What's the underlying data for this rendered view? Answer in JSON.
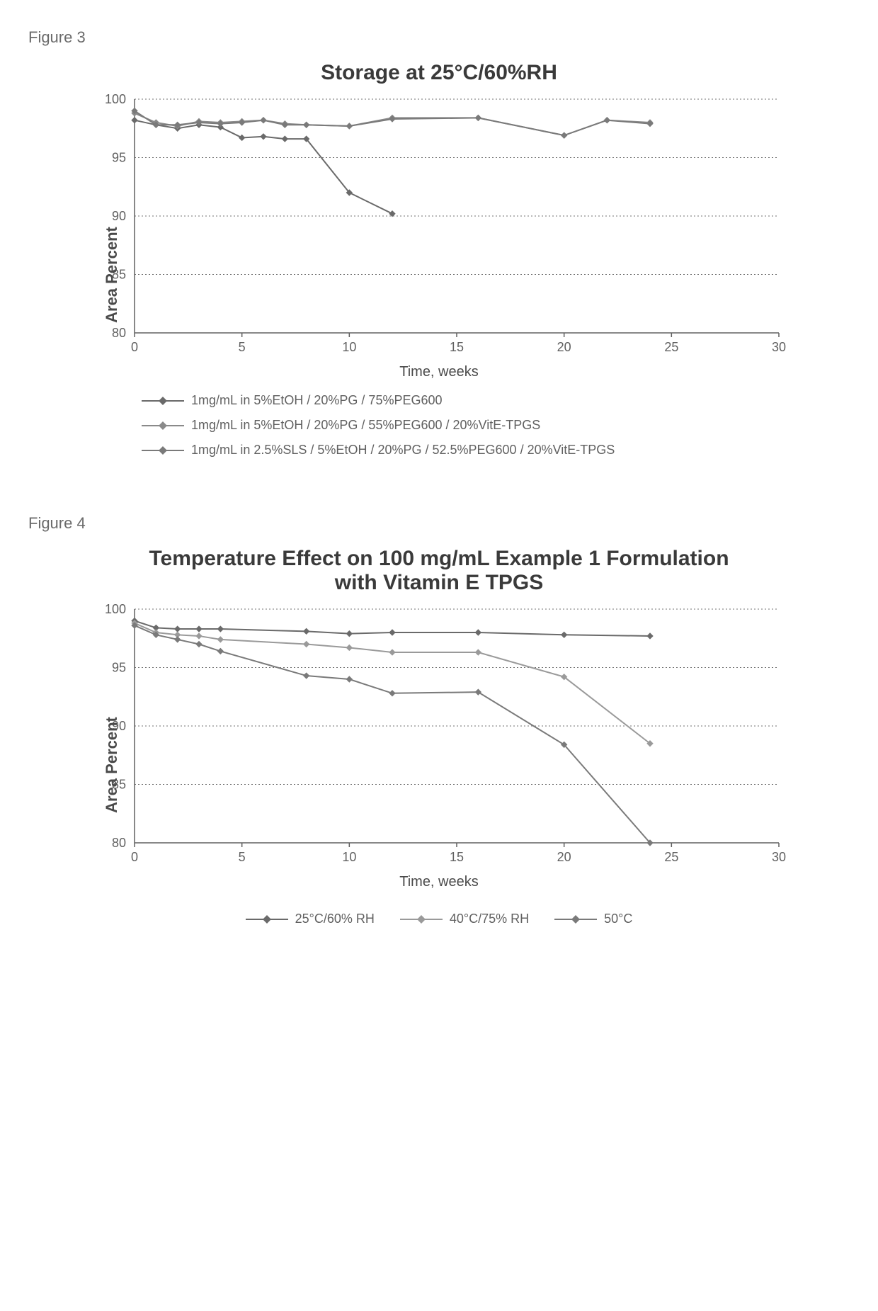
{
  "figure3": {
    "label": "Figure 3",
    "title": "Storage at 25°C/60%RH",
    "ylabel": "Area Percent",
    "xlabel": "Time, weeks",
    "xlim": [
      0,
      30
    ],
    "xtick_step": 5,
    "ylim": [
      80,
      100
    ],
    "ytick_step": 5,
    "grid_color": "#707070",
    "background_color": "#ffffff",
    "title_fontsize": 30,
    "label_fontsize": 20,
    "tick_fontsize": 18,
    "marker": "diamond",
    "marker_size": 8,
    "line_width": 2,
    "series": [
      {
        "label": "1mg/mL in 5%EtOH / 20%PG / 75%PEG600",
        "color": "#6a6a6a",
        "x": [
          0,
          1,
          2,
          3,
          4,
          5,
          6,
          7,
          8,
          10,
          12
        ],
        "y": [
          98.2,
          97.8,
          97.5,
          97.8,
          97.6,
          96.7,
          96.8,
          96.6,
          96.6,
          92.0,
          90.2
        ]
      },
      {
        "label": "1mg/mL in 5%EtOH / 20%PG / 55%PEG600 / 20%VitE-TPGS",
        "color": "#8a8a8a",
        "x": [
          0,
          1,
          2,
          3,
          4,
          5,
          6,
          7,
          8,
          10,
          12,
          16,
          20,
          22,
          24
        ],
        "y": [
          98.8,
          98.0,
          97.7,
          98.1,
          98.0,
          98.1,
          98.2,
          97.9,
          97.8,
          97.7,
          98.4,
          98.4,
          96.9,
          98.2,
          98.0
        ]
      },
      {
        "label": "1mg/mL in 2.5%SLS / 5%EtOH / 20%PG / 52.5%PEG600 / 20%VitE-TPGS",
        "color": "#7a7a7a",
        "x": [
          0,
          1,
          2,
          3,
          4,
          5,
          6,
          7,
          8,
          10,
          12,
          16,
          20,
          22,
          24
        ],
        "y": [
          99.0,
          97.8,
          97.8,
          98.0,
          97.9,
          98.0,
          98.2,
          97.8,
          97.8,
          97.7,
          98.3,
          98.4,
          96.9,
          98.2,
          97.9
        ]
      }
    ]
  },
  "figure4": {
    "label": "Figure 4",
    "title": "Temperature Effect on 100 mg/mL Example 1 Formulation with Vitamin E TPGS",
    "ylabel": "Area Percent",
    "xlabel": "Time, weeks",
    "xlim": [
      0,
      30
    ],
    "xtick_step": 5,
    "ylim": [
      80,
      100
    ],
    "ytick_step": 5,
    "grid_color": "#707070",
    "background_color": "#ffffff",
    "title_fontsize": 30,
    "label_fontsize": 20,
    "tick_fontsize": 18,
    "marker": "diamond",
    "marker_size": 8,
    "line_width": 2,
    "legend_layout": "horizontal",
    "series": [
      {
        "label": "25°C/60% RH",
        "color": "#6a6a6a",
        "x": [
          0,
          1,
          2,
          3,
          4,
          8,
          10,
          12,
          16,
          20,
          24
        ],
        "y": [
          99.0,
          98.4,
          98.3,
          98.3,
          98.3,
          98.1,
          97.9,
          98.0,
          98.0,
          97.8,
          97.7
        ]
      },
      {
        "label": "40°C/75% RH",
        "color": "#9a9a9a",
        "x": [
          0,
          1,
          2,
          3,
          4,
          8,
          10,
          12,
          16,
          20,
          24
        ],
        "y": [
          98.8,
          98.0,
          97.8,
          97.7,
          97.4,
          97.0,
          96.7,
          96.3,
          96.3,
          94.2,
          88.5
        ]
      },
      {
        "label": "50°C",
        "color": "#7a7a7a",
        "x": [
          0,
          1,
          2,
          3,
          4,
          8,
          10,
          12,
          16,
          20,
          24
        ],
        "y": [
          98.6,
          97.8,
          97.4,
          97.0,
          96.4,
          94.3,
          94.0,
          92.8,
          92.9,
          88.4,
          80.0
        ]
      }
    ]
  }
}
